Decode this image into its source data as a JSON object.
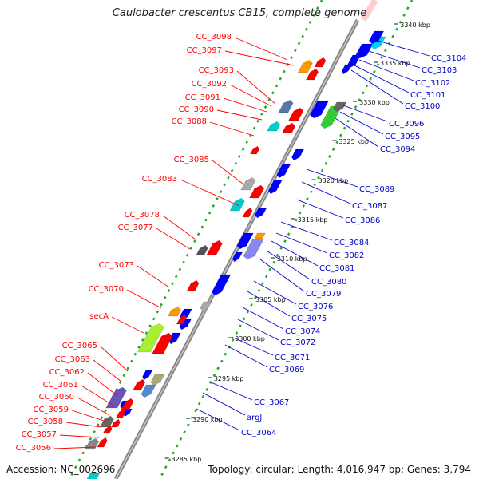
{
  "title": "Caulobacter crescentus CB15, complete genome",
  "footer": {
    "accession": "Accession: NC_002696",
    "summary": "Topology: circular; Length: 4,016,947 bp; Genes: 3,794"
  },
  "colors": {
    "forward_label": "#ff0000",
    "reverse_label": "#0000cc",
    "forward_gene": "#ff0000",
    "reverse_gene": "#0000ff",
    "backbone": "#888888",
    "dotted_track": "#22aa22"
  },
  "ticks": [
    "3340 kbp",
    "3335 kbp",
    "3330 kbp",
    "3325 kbp",
    "3320 kbp",
    "3315 kbp",
    "3310 kbp",
    "3305 kbp",
    "3300 kbp",
    "3295 kbp",
    "3290 kbp",
    "3285 kbp"
  ],
  "forward_labels": [
    "CC_3098",
    "CC_3097",
    "CC_3093",
    "CC_3092",
    "CC_3091",
    "CC_3090",
    "CC_3088",
    "CC_3085",
    "CC_3083",
    "CC_3078",
    "CC_3077",
    "CC_3073",
    "CC_3070",
    "secA",
    "CC_3065",
    "CC_3063",
    "CC_3062",
    "CC_3061",
    "CC_3060",
    "CC_3059",
    "CC_3058",
    "CC_3057",
    "CC_3056"
  ],
  "reverse_labels": [
    "CC_3104",
    "CC_3103",
    "CC_3102",
    "CC_3101",
    "CC_3100",
    "CC_3096",
    "CC_3095",
    "CC_3094",
    "CC_3089",
    "CC_3087",
    "CC_3086",
    "CC_3084",
    "CC_3082",
    "CC_3081",
    "CC_3080",
    "CC_3079",
    "CC_3076",
    "CC_3075",
    "CC_3074",
    "CC_3072",
    "CC_3071",
    "CC_3069",
    "CC_3067",
    "argJ",
    "CC_3064"
  ]
}
